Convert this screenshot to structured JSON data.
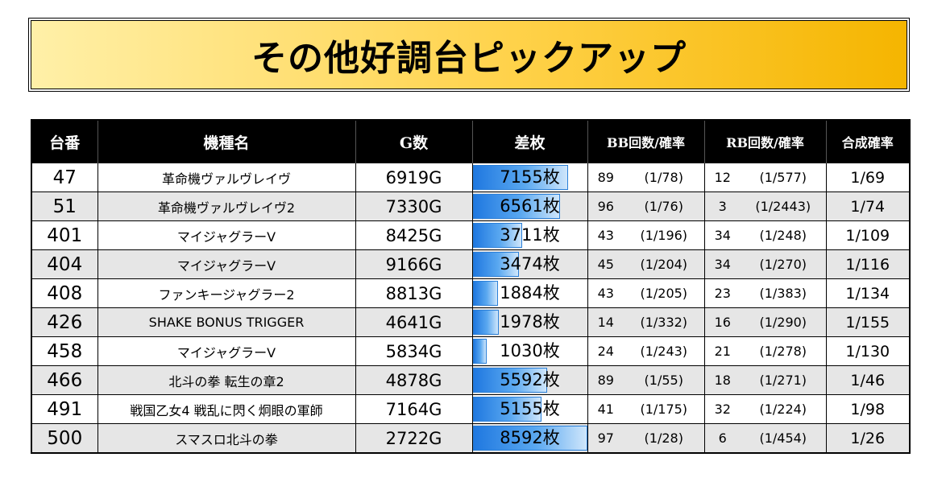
{
  "title": "その他好調台ピックアップ",
  "headers": {
    "machine_no": "台番",
    "model": "機種名",
    "games": "G数",
    "diff": "差枚",
    "bb": "BB回数/確率",
    "rb": "RB回数/確率",
    "combined": "合成確率"
  },
  "diff_max": 8592,
  "rows": [
    {
      "no": "47",
      "model": "革命機ヴァルヴレイヴ",
      "games": "6919G",
      "diff": 7155,
      "diff_label": "7155枚",
      "bb_count": "89",
      "bb_prob": "(1/78)",
      "rb_count": "12",
      "rb_prob": "(1/577)",
      "combined": "1/69"
    },
    {
      "no": "51",
      "model": "革命機ヴァルヴレイヴ2",
      "games": "7330G",
      "diff": 6561,
      "diff_label": "6561枚",
      "bb_count": "96",
      "bb_prob": "(1/76)",
      "rb_count": "3",
      "rb_prob": "(1/2443)",
      "combined": "1/74"
    },
    {
      "no": "401",
      "model": "マイジャグラーV",
      "games": "8425G",
      "diff": 3711,
      "diff_label": "3711枚",
      "bb_count": "43",
      "bb_prob": "(1/196)",
      "rb_count": "34",
      "rb_prob": "(1/248)",
      "combined": "1/109"
    },
    {
      "no": "404",
      "model": "マイジャグラーV",
      "games": "9166G",
      "diff": 3474,
      "diff_label": "3474枚",
      "bb_count": "45",
      "bb_prob": "(1/204)",
      "rb_count": "34",
      "rb_prob": "(1/270)",
      "combined": "1/116"
    },
    {
      "no": "408",
      "model": "ファンキージャグラー2",
      "games": "8813G",
      "diff": 1884,
      "diff_label": "1884枚",
      "bb_count": "43",
      "bb_prob": "(1/205)",
      "rb_count": "23",
      "rb_prob": "(1/383)",
      "combined": "1/134"
    },
    {
      "no": "426",
      "model": "SHAKE BONUS TRIGGER",
      "games": "4641G",
      "diff": 1978,
      "diff_label": "1978枚",
      "bb_count": "14",
      "bb_prob": "(1/332)",
      "rb_count": "16",
      "rb_prob": "(1/290)",
      "combined": "1/155"
    },
    {
      "no": "458",
      "model": "マイジャグラーV",
      "games": "5834G",
      "diff": 1030,
      "diff_label": "1030枚",
      "bb_count": "24",
      "bb_prob": "(1/243)",
      "rb_count": "21",
      "rb_prob": "(1/278)",
      "combined": "1/130"
    },
    {
      "no": "466",
      "model": "北斗の拳 転生の章2",
      "games": "4878G",
      "diff": 5592,
      "diff_label": "5592枚",
      "bb_count": "89",
      "bb_prob": "(1/55)",
      "rb_count": "18",
      "rb_prob": "(1/271)",
      "combined": "1/46"
    },
    {
      "no": "491",
      "model": "戦国乙女4 戦乱に閃く炯眼の軍師",
      "games": "7164G",
      "diff": 5155,
      "diff_label": "5155枚",
      "bb_count": "41",
      "bb_prob": "(1/175)",
      "rb_count": "32",
      "rb_prob": "(1/224)",
      "combined": "1/98"
    },
    {
      "no": "500",
      "model": "スマスロ北斗の拳",
      "games": "2722G",
      "diff": 8592,
      "diff_label": "8592枚",
      "bb_count": "97",
      "bb_prob": "(1/28)",
      "rb_count": "6",
      "rb_prob": "(1/454)",
      "combined": "1/26"
    }
  ]
}
